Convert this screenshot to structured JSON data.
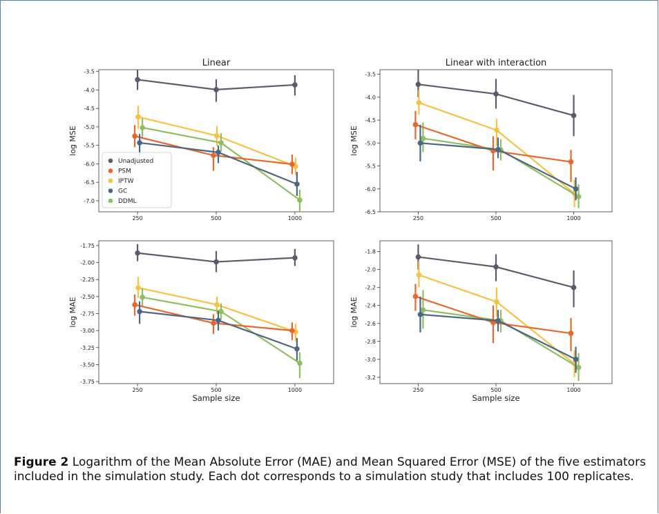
{
  "caption": {
    "label": "Figure 2",
    "text": "Logarithm of the Mean Absolute Error (MAE) and Mean Squared Error (MSE) of the five estimators included in the simulation study. Each dot corresponds to a simulation study that includes 100 replicates."
  },
  "legend_entries": [
    "Unadjusted",
    "PSM",
    "IPTW",
    "GC",
    "DDML"
  ],
  "colors": {
    "Unadjusted": "#5e5a6b",
    "PSM": "#e8672d",
    "IPTW": "#f5c242",
    "GC": "#4c6784",
    "DDML": "#8fbe62"
  },
  "chart_data": [
    {
      "type": "line",
      "title": "Linear",
      "xlabel": "",
      "ylabel": "log MSE",
      "categories": [
        "250",
        "500",
        "1000"
      ],
      "ylim": [
        -7.3,
        -3.45
      ],
      "yticks": [
        -3.5,
        -4.0,
        -4.5,
        -5.0,
        -5.5,
        -6.0,
        -6.5,
        -7.0
      ],
      "ytick_labels": [
        "-3.5",
        "-4.0",
        "-4.5",
        "-5.0",
        "-5.5",
        "-6.0",
        "-6.5",
        "-7.0"
      ],
      "legend": "lower-left",
      "series": [
        {
          "name": "Unadjusted",
          "values": [
            -3.72,
            -3.99,
            -3.86
          ],
          "err": [
            [
              -3.44,
              -4.0
            ],
            [
              -3.71,
              -4.32
            ],
            [
              -3.6,
              -4.15
            ]
          ]
        },
        {
          "name": "PSM",
          "values": [
            -5.25,
            -5.77,
            -6.01
          ],
          "err": [
            [
              -4.95,
              -5.55
            ],
            [
              -5.55,
              -6.19
            ],
            [
              -5.75,
              -6.28
            ]
          ]
        },
        {
          "name": "IPTW",
          "values": [
            -4.73,
            -5.24,
            -6.07
          ],
          "err": [
            [
              -4.43,
              -5.05
            ],
            [
              -4.98,
              -5.52
            ],
            [
              -5.83,
              -6.3
            ]
          ]
        },
        {
          "name": "GC",
          "values": [
            -5.43,
            -5.69,
            -6.55
          ],
          "err": [
            [
              -5.19,
              -5.8
            ],
            [
              -5.5,
              -5.98
            ],
            [
              -6.22,
              -6.87
            ]
          ]
        },
        {
          "name": "DDML",
          "values": [
            -5.02,
            -5.43,
            -6.98
          ],
          "err": [
            [
              -4.77,
              -5.28
            ],
            [
              -5.17,
              -5.67
            ],
            [
              -6.7,
              -7.3
            ]
          ]
        }
      ]
    },
    {
      "type": "line",
      "title": "Linear with interaction",
      "xlabel": "",
      "ylabel": "log MSE",
      "categories": [
        "250",
        "500",
        "1000"
      ],
      "ylim": [
        -6.5,
        -3.4
      ],
      "yticks": [
        -3.5,
        -4.0,
        -4.5,
        -5.0,
        -5.5,
        -6.0,
        -6.5
      ],
      "ytick_labels": [
        "-3.5",
        "-4.0",
        "-4.5",
        "-5.0",
        "-5.5",
        "-6.0",
        "-6.5"
      ],
      "series": [
        {
          "name": "Unadjusted",
          "values": [
            -3.72,
            -3.93,
            -4.4
          ],
          "err": [
            [
              -3.4,
              -4.0
            ],
            [
              -3.6,
              -4.25
            ],
            [
              -3.95,
              -4.85
            ]
          ]
        },
        {
          "name": "PSM",
          "values": [
            -4.6,
            -5.17,
            -5.41
          ],
          "err": [
            [
              -4.3,
              -4.92
            ],
            [
              -4.85,
              -5.6
            ],
            [
              -5.15,
              -5.85
            ]
          ]
        },
        {
          "name": "IPTW",
          "values": [
            -4.12,
            -4.72,
            -6.1
          ],
          "err": [
            [
              -3.85,
              -4.38
            ],
            [
              -4.47,
              -5.07
            ],
            [
              -5.8,
              -6.4
            ]
          ]
        },
        {
          "name": "GC",
          "values": [
            -5.0,
            -5.14,
            -6.0
          ],
          "err": [
            [
              -4.6,
              -5.4
            ],
            [
              -4.88,
              -5.33
            ],
            [
              -5.75,
              -6.25
            ]
          ]
        },
        {
          "name": "DDML",
          "values": [
            -4.9,
            -5.15,
            -6.17
          ],
          "err": [
            [
              -4.55,
              -5.2
            ],
            [
              -4.92,
              -5.38
            ],
            [
              -5.9,
              -6.42
            ]
          ]
        }
      ]
    },
    {
      "type": "line",
      "title": "",
      "xlabel": "Sample size",
      "ylabel": "log MAE",
      "categories": [
        "250",
        "500",
        "1000"
      ],
      "ylim": [
        -3.78,
        -1.68
      ],
      "yticks": [
        -1.75,
        -2.0,
        -2.25,
        -2.5,
        -2.75,
        -3.0,
        -3.25,
        -3.5,
        -3.75
      ],
      "ytick_labels": [
        "-1.75",
        "-2.00",
        "-2.25",
        "-2.50",
        "-2.75",
        "-3.00",
        "-3.25",
        "-3.50",
        "-3.75"
      ],
      "series": [
        {
          "name": "Unadjusted",
          "values": [
            -1.86,
            -1.99,
            -1.93
          ],
          "err": [
            [
              -1.73,
              -1.98
            ],
            [
              -1.83,
              -2.14
            ],
            [
              -1.8,
              -2.05
            ]
          ]
        },
        {
          "name": "PSM",
          "values": [
            -2.62,
            -2.89,
            -3.0
          ],
          "err": [
            [
              -2.47,
              -2.78
            ],
            [
              -2.76,
              -3.05
            ],
            [
              -2.88,
              -3.14
            ]
          ]
        },
        {
          "name": "IPTW",
          "values": [
            -2.37,
            -2.62,
            -3.02
          ],
          "err": [
            [
              -2.21,
              -2.52
            ],
            [
              -2.5,
              -2.76
            ],
            [
              -2.9,
              -3.16
            ]
          ]
        },
        {
          "name": "GC",
          "values": [
            -2.72,
            -2.85,
            -3.27
          ],
          "err": [
            [
              -2.57,
              -2.9
            ],
            [
              -2.71,
              -3.0
            ],
            [
              -3.11,
              -3.44
            ]
          ]
        },
        {
          "name": "DDML",
          "values": [
            -2.51,
            -2.72,
            -3.48
          ],
          "err": [
            [
              -2.38,
              -2.64
            ],
            [
              -2.6,
              -2.84
            ],
            [
              -3.32,
              -3.7
            ]
          ]
        }
      ]
    },
    {
      "type": "line",
      "title": "",
      "xlabel": "Sample size",
      "ylabel": "log MAE",
      "categories": [
        "250",
        "500",
        "1000"
      ],
      "ylim": [
        -3.27,
        -1.68
      ],
      "yticks": [
        -1.8,
        -2.0,
        -2.2,
        -2.4,
        -2.6,
        -2.8,
        -3.0,
        -3.2
      ],
      "ytick_labels": [
        "-1.8",
        "-2.0",
        "-2.2",
        "-2.4",
        "-2.6",
        "-2.8",
        "-3.0",
        "-3.2"
      ],
      "series": [
        {
          "name": "Unadjusted",
          "values": [
            -1.86,
            -1.97,
            -2.2
          ],
          "err": [
            [
              -1.72,
              -2.0
            ],
            [
              -1.83,
              -2.13
            ],
            [
              -2.01,
              -2.42
            ]
          ]
        },
        {
          "name": "PSM",
          "values": [
            -2.3,
            -2.59,
            -2.71
          ],
          "err": [
            [
              -2.16,
              -2.46
            ],
            [
              -2.4,
              -2.82
            ],
            [
              -2.54,
              -2.91
            ]
          ]
        },
        {
          "name": "IPTW",
          "values": [
            -2.06,
            -2.36,
            -3.05
          ],
          "err": [
            [
              -1.91,
              -2.2
            ],
            [
              -2.2,
              -2.53
            ],
            [
              -2.9,
              -3.2
            ]
          ]
        },
        {
          "name": "GC",
          "values": [
            -2.5,
            -2.57,
            -3.0
          ],
          "err": [
            [
              -2.3,
              -2.7
            ],
            [
              -2.45,
              -2.69
            ],
            [
              -2.86,
              -3.15
            ]
          ]
        },
        {
          "name": "DDML",
          "values": [
            -2.45,
            -2.57,
            -3.09
          ],
          "err": [
            [
              -2.23,
              -2.66
            ],
            [
              -2.45,
              -2.7
            ],
            [
              -2.93,
              -3.24
            ]
          ]
        }
      ]
    }
  ]
}
